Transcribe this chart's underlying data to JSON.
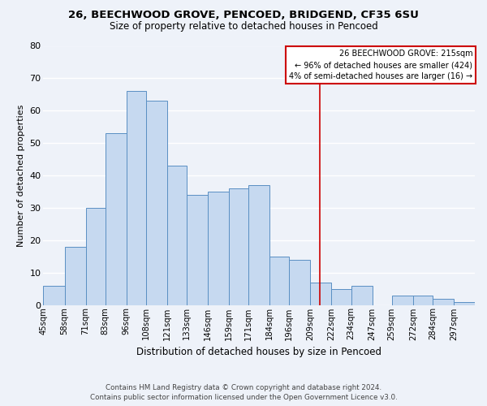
{
  "title": "26, BEECHWOOD GROVE, PENCOED, BRIDGEND, CF35 6SU",
  "subtitle": "Size of property relative to detached houses in Pencoed",
  "xlabel": "Distribution of detached houses by size in Pencoed",
  "ylabel": "Number of detached properties",
  "bin_labels": [
    "45sqm",
    "58sqm",
    "71sqm",
    "83sqm",
    "96sqm",
    "108sqm",
    "121sqm",
    "133sqm",
    "146sqm",
    "159sqm",
    "171sqm",
    "184sqm",
    "196sqm",
    "209sqm",
    "222sqm",
    "234sqm",
    "247sqm",
    "259sqm",
    "272sqm",
    "284sqm",
    "297sqm"
  ],
  "bar_heights": [
    6,
    18,
    30,
    53,
    66,
    63,
    43,
    34,
    35,
    36,
    37,
    15,
    14,
    7,
    5,
    6,
    0,
    3,
    3,
    2,
    1
  ],
  "bar_color": "#c6d9f0",
  "bar_edge_color": "#5a8fc3",
  "ylim": [
    0,
    80
  ],
  "yticks": [
    0,
    10,
    20,
    30,
    40,
    50,
    60,
    70,
    80
  ],
  "vline_x": 215,
  "vline_color": "#cc0000",
  "annotation_title": "26 BEECHWOOD GROVE: 215sqm",
  "annotation_line1": "← 96% of detached houses are smaller (424)",
  "annotation_line2": "4% of semi-detached houses are larger (16) →",
  "annotation_box_color": "#ffffff",
  "annotation_box_edge": "#cc0000",
  "footer_line1": "Contains HM Land Registry data © Crown copyright and database right 2024.",
  "footer_line2": "Contains public sector information licensed under the Open Government Licence v3.0.",
  "background_color": "#eef2f9",
  "grid_color": "#ffffff",
  "bin_edges": [
    45,
    58,
    71,
    83,
    96,
    108,
    121,
    133,
    146,
    159,
    171,
    184,
    196,
    209,
    222,
    234,
    247,
    259,
    272,
    284,
    297,
    310
  ]
}
